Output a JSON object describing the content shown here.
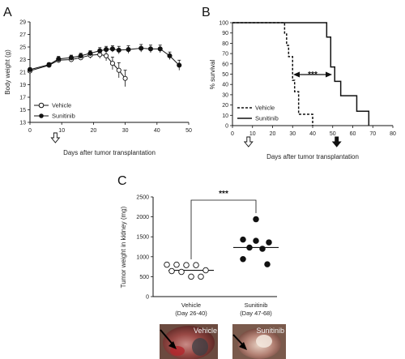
{
  "figure": {
    "panels": [
      {
        "letter": "A"
      },
      {
        "letter": "B"
      },
      {
        "letter": "C"
      }
    ]
  },
  "chart_data": [
    {
      "id": "A",
      "type": "line",
      "xlabel": "Days after tumor transplantation",
      "ylabel": "Body weight (g)",
      "xlim": [
        0,
        50
      ],
      "ylim": [
        13,
        29
      ],
      "xticks": [
        0,
        10,
        20,
        30,
        40,
        50
      ],
      "yticks": [
        13,
        15,
        17,
        19,
        21,
        23,
        25,
        27,
        29
      ],
      "legend_position": "bottom-left",
      "markers": [
        {
          "type": "open-arrow",
          "x": 8
        }
      ],
      "series": [
        {
          "name": "Vehicle",
          "marker": "open-circle",
          "x": [
            0,
            6,
            9,
            13,
            16,
            19,
            22,
            24,
            26,
            28,
            30
          ],
          "y": [
            21.2,
            22.1,
            22.9,
            23.0,
            23.3,
            23.7,
            23.8,
            23.6,
            22.4,
            21.3,
            20.0
          ],
          "err": [
            0.3,
            0.3,
            0.4,
            0.4,
            0.4,
            0.5,
            0.6,
            0.8,
            1.0,
            1.2,
            1.3
          ]
        },
        {
          "name": "Sunitinib",
          "marker": "filled-circle",
          "x": [
            0,
            6,
            9,
            13,
            16,
            19,
            22,
            24,
            26,
            28,
            31,
            35,
            38,
            41,
            44,
            47
          ],
          "y": [
            21.4,
            22.2,
            23.1,
            23.3,
            23.6,
            24.0,
            24.4,
            24.6,
            24.7,
            24.5,
            24.6,
            24.8,
            24.7,
            24.7,
            23.6,
            22.1
          ],
          "err": [
            0.3,
            0.3,
            0.4,
            0.4,
            0.4,
            0.4,
            0.5,
            0.5,
            0.5,
            0.6,
            0.6,
            0.6,
            0.6,
            0.6,
            0.6,
            0.8
          ]
        }
      ]
    },
    {
      "id": "B",
      "type": "line",
      "xlabel": "Days after tumor transplantation",
      "ylabel": "% survival",
      "xlim": [
        0,
        80
      ],
      "ylim": [
        0,
        100
      ],
      "xticks": [
        0,
        10,
        20,
        30,
        40,
        50,
        60,
        70,
        80
      ],
      "yticks": [
        0,
        10,
        20,
        30,
        40,
        50,
        60,
        70,
        80,
        90,
        100
      ],
      "legend_position": "bottom-left",
      "annotation": "***",
      "markers": [
        {
          "type": "open-arrow",
          "x": 8
        },
        {
          "type": "filled-arrow",
          "x": 52
        }
      ],
      "series": [
        {
          "name": "Vehicle",
          "style": "dashed",
          "x": [
            0,
            26,
            26,
            27,
            27,
            28,
            28,
            30,
            30,
            31,
            31,
            33,
            33,
            40,
            40
          ],
          "y": [
            100,
            100,
            89,
            89,
            78,
            78,
            67,
            67,
            44,
            44,
            33,
            33,
            11,
            11,
            0
          ]
        },
        {
          "name": "Sunitinib",
          "style": "solid",
          "x": [
            0,
            47,
            47,
            49,
            49,
            51,
            51,
            54,
            54,
            62,
            62,
            68,
            68
          ],
          "y": [
            100,
            100,
            86,
            86,
            57,
            57,
            43,
            43,
            29,
            29,
            14,
            14,
            0
          ]
        }
      ]
    },
    {
      "id": "C",
      "type": "scatter",
      "ylabel": "Tumor weight in kidney (mg)",
      "ylim": [
        0,
        2500
      ],
      "yticks": [
        0,
        500,
        1000,
        1500,
        2000,
        2500
      ],
      "categories": [
        "Vehicle\n(Day 26-40)",
        "Sunitinib\n(Day 47-68)"
      ],
      "annotation": "***",
      "series": [
        {
          "name": "Vehicle",
          "marker": "open-circle",
          "mean": 660,
          "values": [
            800,
            800,
            790,
            790,
            660,
            640,
            620,
            500,
            500
          ]
        },
        {
          "name": "Sunitinib",
          "marker": "filled-circle",
          "mean": 1230,
          "values": [
            1940,
            1430,
            1400,
            1360,
            1230,
            1200,
            940,
            810
          ]
        }
      ]
    }
  ],
  "photos": [
    {
      "label": "Vehicle"
    },
    {
      "label": "Sunitinib"
    }
  ]
}
